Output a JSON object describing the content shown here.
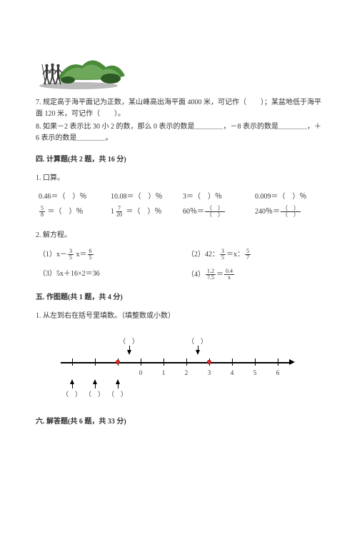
{
  "illustration": {
    "hill_color": "#4a8b3a",
    "hill_light": "#7db56a",
    "bush_dark": "#2d5a24",
    "figure_color": "#3a3a3a",
    "shadow_color": "rgba(60,60,60,0.35)"
  },
  "q7": "7. 规定高于海平面记为正数，某山峰高出海平面 4000 米，可记作（　　）；某盆地低于海平面 120 米，可记作（　　）。",
  "q8": "8. 如果－2 表示比 30 小 2 的数，那么 0 表示的数是＿＿＿＿，－8 表示的数是＿＿＿＿，＋6 表示的数是＿＿＿＿。",
  "sec4_title": "四. 计算题(共 2 题，共 16 分)",
  "sec4_q1": "1. 口算。",
  "calc": {
    "c1": "0.46＝（　）％",
    "c2": "10.08＝（　）％",
    "c3": "3＝（　）％",
    "c4": "0.009＝（　）％",
    "c5_pre": "5",
    "c5_den": "8",
    "c5_post": " ＝（　）％",
    "c6_pre": "1",
    "c6_num": "7",
    "c6_den": "20",
    "c6_post": " ＝（　）％",
    "c7_pre": "60％＝",
    "c7_num": "（　）",
    "c7_den": "（　）",
    "c8_pre": "240％＝",
    "c8_num": "（　）",
    "c8_den": "（　）"
  },
  "sec4_q2": "2. 解方程。",
  "eqn": {
    "e1_pre": "（1）x－",
    "e1_n1": "3",
    "e1_d1": "5",
    "e1_mid": " x＝",
    "e1_n2": "6",
    "e1_d2": "5",
    "e2_pre": "（2）42：",
    "e2_n1": "3",
    "e2_d1": "5",
    "e2_mid": "＝x：",
    "e2_n2": "5",
    "e2_d2": "7",
    "e3": "（3）5x＋16×2＝36",
    "e4_pre": "（4）",
    "e4_n1": "1.2",
    "e4_d1": "7.5",
    "e4_mid": "＝",
    "e4_n2": "0.4",
    "e4_d2": "x"
  },
  "sec5_title": "五. 作图题(共 1 题，共 4 分)",
  "sec5_q1": "1. 从左到右在括号里填数。（填整数或小数）",
  "numberline": {
    "start": -3.5,
    "end": 6.5,
    "ticks": [
      -3,
      -2,
      -1,
      0,
      1,
      2,
      3,
      4,
      5,
      6
    ],
    "labels": [
      {
        "val": 0,
        "text": "0"
      },
      {
        "val": 1,
        "text": "1"
      },
      {
        "val": 2,
        "text": "2"
      },
      {
        "val": 3,
        "text": "3"
      },
      {
        "val": 4,
        "text": "4"
      },
      {
        "val": 5,
        "text": "5"
      },
      {
        "val": 6,
        "text": "6"
      }
    ],
    "red_dots": [
      -1,
      3
    ],
    "top_points": [
      {
        "val": -0.5,
        "text": "（　）"
      },
      {
        "val": 2.5,
        "text": "（　）"
      }
    ],
    "bot_points": [
      {
        "val": -3,
        "text": "（　）"
      },
      {
        "val": -2,
        "text": "（　）"
      },
      {
        "val": -1,
        "text": "（　）"
      }
    ]
  },
  "sec6_title": "六. 解答题(共 6 题，共 33 分)"
}
